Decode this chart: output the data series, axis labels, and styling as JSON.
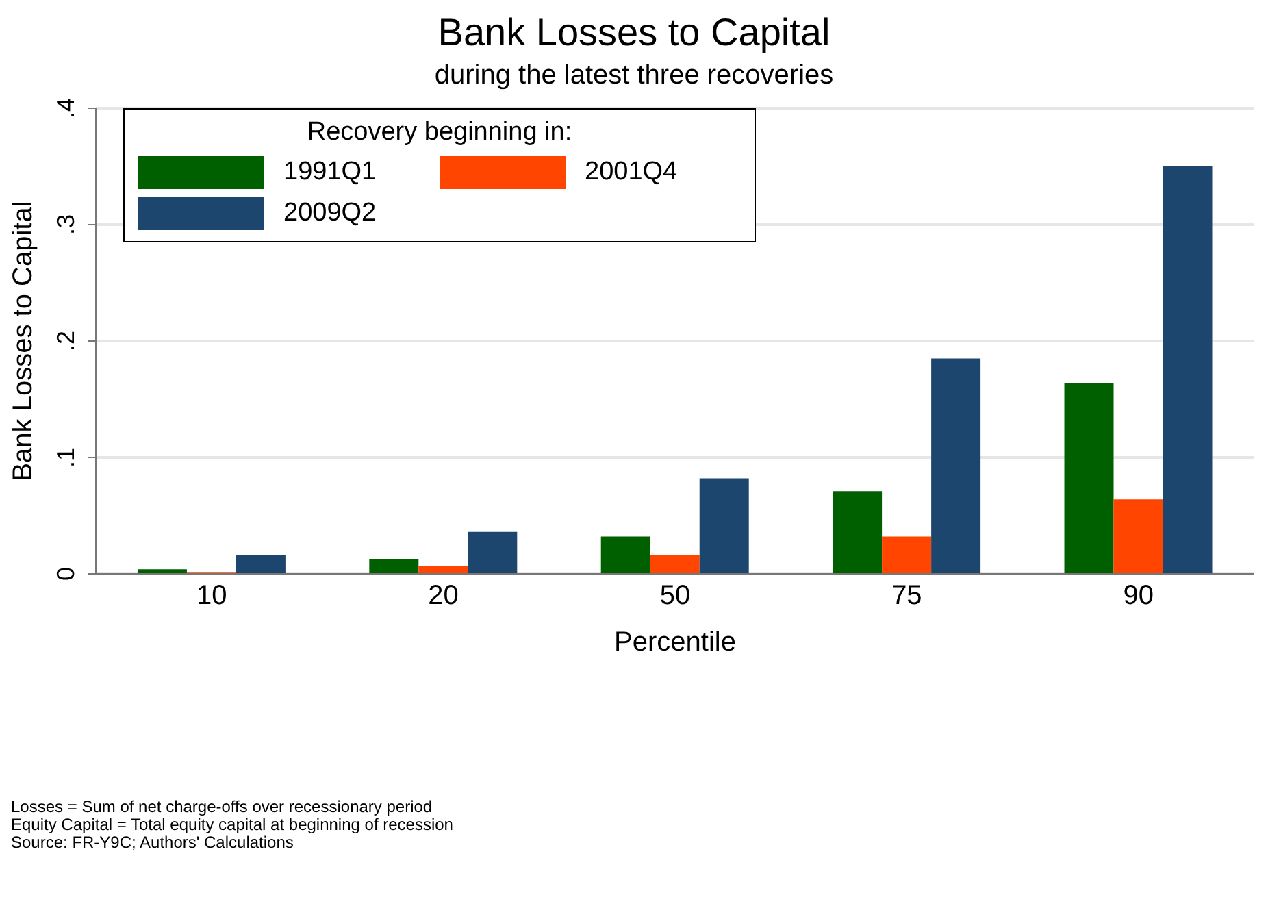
{
  "chart_data": {
    "type": "bar",
    "title": "Bank Losses to Capital",
    "subtitle": "during the latest three recoveries",
    "xlabel": "Percentile",
    "ylabel": "Bank Losses to Capital",
    "legend_title": "Recovery beginning in:",
    "categories": [
      "10",
      "20",
      "50",
      "75",
      "90"
    ],
    "series": [
      {
        "name": "1991Q1",
        "color": "#006000",
        "values": [
          0.004,
          0.013,
          0.032,
          0.071,
          0.164
        ]
      },
      {
        "name": "2001Q4",
        "color": "#ff4500",
        "values": [
          0.001,
          0.007,
          0.016,
          0.032,
          0.064
        ]
      },
      {
        "name": "2009Q2",
        "color": "#1c466e",
        "values": [
          0.016,
          0.036,
          0.082,
          0.185,
          0.35
        ]
      }
    ],
    "ylim": [
      0,
      0.4
    ],
    "yticks": [
      {
        "value": 0,
        "label": "0"
      },
      {
        "value": 0.1,
        "label": ".1"
      },
      {
        "value": 0.2,
        "label": ".2"
      },
      {
        "value": 0.3,
        "label": ".3"
      },
      {
        "value": 0.4,
        "label": ".4"
      }
    ],
    "grid": "y",
    "legend": "top left",
    "annotations": [
      "Losses = Sum of net charge-offs over recessionary period",
      "Equity Capital = Total equity capital at beginning of recession",
      "Source: FR-Y9C; Authors' Calculations"
    ]
  }
}
